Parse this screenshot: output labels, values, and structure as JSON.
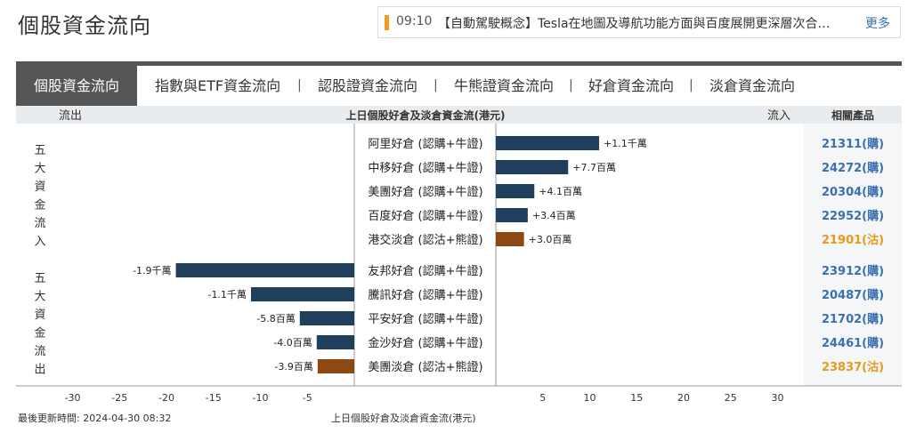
{
  "page_title": "個股資金流向",
  "news": {
    "time": "09:10",
    "headline": "【自動駕駛概念】Tesla在地圖及導航功能方面與百度展開更深層次合…",
    "more_label": "更多"
  },
  "tabs": [
    {
      "label": "個股資金流向",
      "active": true
    },
    {
      "label": "指數與ETF資金流向",
      "active": false
    },
    {
      "label": "認股證資金流向",
      "active": false
    },
    {
      "label": "牛熊證資金流向",
      "active": false
    },
    {
      "label": "好倉資金流向",
      "active": false
    },
    {
      "label": "淡倉資金流向",
      "active": false
    }
  ],
  "tab_separator": "|",
  "header": {
    "outflow_label": "流出",
    "center_title": "上日個股好倉及淡倉資金流(港元)",
    "inflow_label": "流入",
    "related_label": "相關產品"
  },
  "group_labels": {
    "inflow": "五大資金流入",
    "outflow": "五大資金流出"
  },
  "colors": {
    "long": "#1f3f5c",
    "short": "#8c4a12",
    "link_long": "#3a6fb0",
    "link_short": "#e89a1a",
    "tab_active": "#555555"
  },
  "chart_data": {
    "type": "bar",
    "orientation": "horizontal",
    "unit_label": "上日個股好倉及淡倉資金流(港元)",
    "xlim": [
      -30,
      30
    ],
    "x_ticks": [
      -30,
      -25,
      -20,
      -15,
      -10,
      -5,
      5,
      10,
      15,
      20,
      25,
      30
    ],
    "scale_unit": "百萬",
    "rows": [
      {
        "group": "inflow",
        "name": "阿里好倉 (認購+牛證)",
        "value": 11,
        "label": "+1.1千萬",
        "type": "long",
        "product": "21311(購)"
      },
      {
        "group": "inflow",
        "name": "中移好倉 (認購+牛證)",
        "value": 7.7,
        "label": "+7.7百萬",
        "type": "long",
        "product": "24272(購)"
      },
      {
        "group": "inflow",
        "name": "美團好倉 (認購+牛證)",
        "value": 4.1,
        "label": "+4.1百萬",
        "type": "long",
        "product": "20304(購)"
      },
      {
        "group": "inflow",
        "name": "百度好倉 (認購+牛證)",
        "value": 3.4,
        "label": "+3.4百萬",
        "type": "long",
        "product": "22952(購)"
      },
      {
        "group": "inflow",
        "name": "港交淡倉 (認沽+熊證)",
        "value": 3.0,
        "label": "+3.0百萬",
        "type": "short",
        "product": "21901(沽)"
      },
      {
        "group": "outflow",
        "name": "友邦好倉 (認購+牛證)",
        "value": -19,
        "label": "-1.9千萬",
        "type": "long",
        "product": "23912(購)"
      },
      {
        "group": "outflow",
        "name": "騰訊好倉 (認購+牛證)",
        "value": -11,
        "label": "-1.1千萬",
        "type": "long",
        "product": "20487(購)"
      },
      {
        "group": "outflow",
        "name": "平安好倉 (認購+牛證)",
        "value": -5.8,
        "label": "-5.8百萬",
        "type": "long",
        "product": "21702(購)"
      },
      {
        "group": "outflow",
        "name": "金沙好倉 (認購+牛證)",
        "value": -4.0,
        "label": "-4.0百萬",
        "type": "long",
        "product": "24461(購)"
      },
      {
        "group": "outflow",
        "name": "美團淡倉 (認沽+熊證)",
        "value": -3.9,
        "label": "-3.9百萬",
        "type": "short",
        "product": "23837(沽)"
      }
    ]
  },
  "footer": {
    "updated": "最後更新時間: 2024-04-30 08:32",
    "axis_caption": "上日個股好倉及淡倉資金流(港元)"
  }
}
